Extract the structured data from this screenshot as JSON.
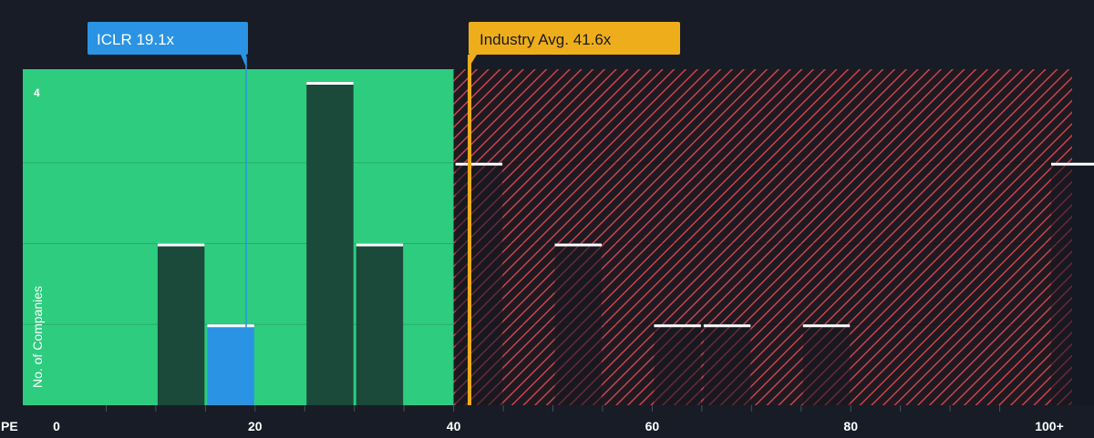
{
  "chart_data": {
    "type": "bar",
    "xlabel": "PE",
    "ylabel": "No. of Companies",
    "x_ticks": [
      "0",
      "20",
      "40",
      "60",
      "80",
      "100+"
    ],
    "x_tick_values": [
      0,
      20,
      40,
      60,
      80,
      100
    ],
    "y_tick_labels": [
      {
        "value": 4,
        "label": "4"
      }
    ],
    "ylim": [
      0,
      4.1
    ],
    "bin_width": 5,
    "bins": [
      {
        "x_start": 10,
        "count": 2,
        "highlight": false
      },
      {
        "x_start": 15,
        "count": 1,
        "highlight": true
      },
      {
        "x_start": 25,
        "count": 4,
        "highlight": false
      },
      {
        "x_start": 30,
        "count": 2,
        "highlight": false
      },
      {
        "x_start": 40,
        "count": 3,
        "highlight": false
      },
      {
        "x_start": 50,
        "count": 2,
        "highlight": false
      },
      {
        "x_start": 60,
        "count": 1,
        "highlight": false
      },
      {
        "x_start": 65,
        "count": 1,
        "highlight": false
      },
      {
        "x_start": 75,
        "count": 1,
        "highlight": false
      },
      {
        "x_start": 100,
        "count": 3,
        "highlight": false
      }
    ],
    "fair_zone_max": 40,
    "company": {
      "label": "ICLR 19.1x",
      "value": 19.1
    },
    "industry": {
      "label": "Industry Avg. 41.6x",
      "value": 41.6
    },
    "grid": true,
    "colors": {
      "background": "#171c26",
      "fair_zone": "#2ecc7f",
      "overvalued_hatch": "#e04a52",
      "bar_dark": "#1b4a3a",
      "bar_highlight": "#2a93e3",
      "company_marker": "#2a93e3",
      "industry_marker": "#eeae1b",
      "bar_cap": "#ffffff"
    }
  }
}
